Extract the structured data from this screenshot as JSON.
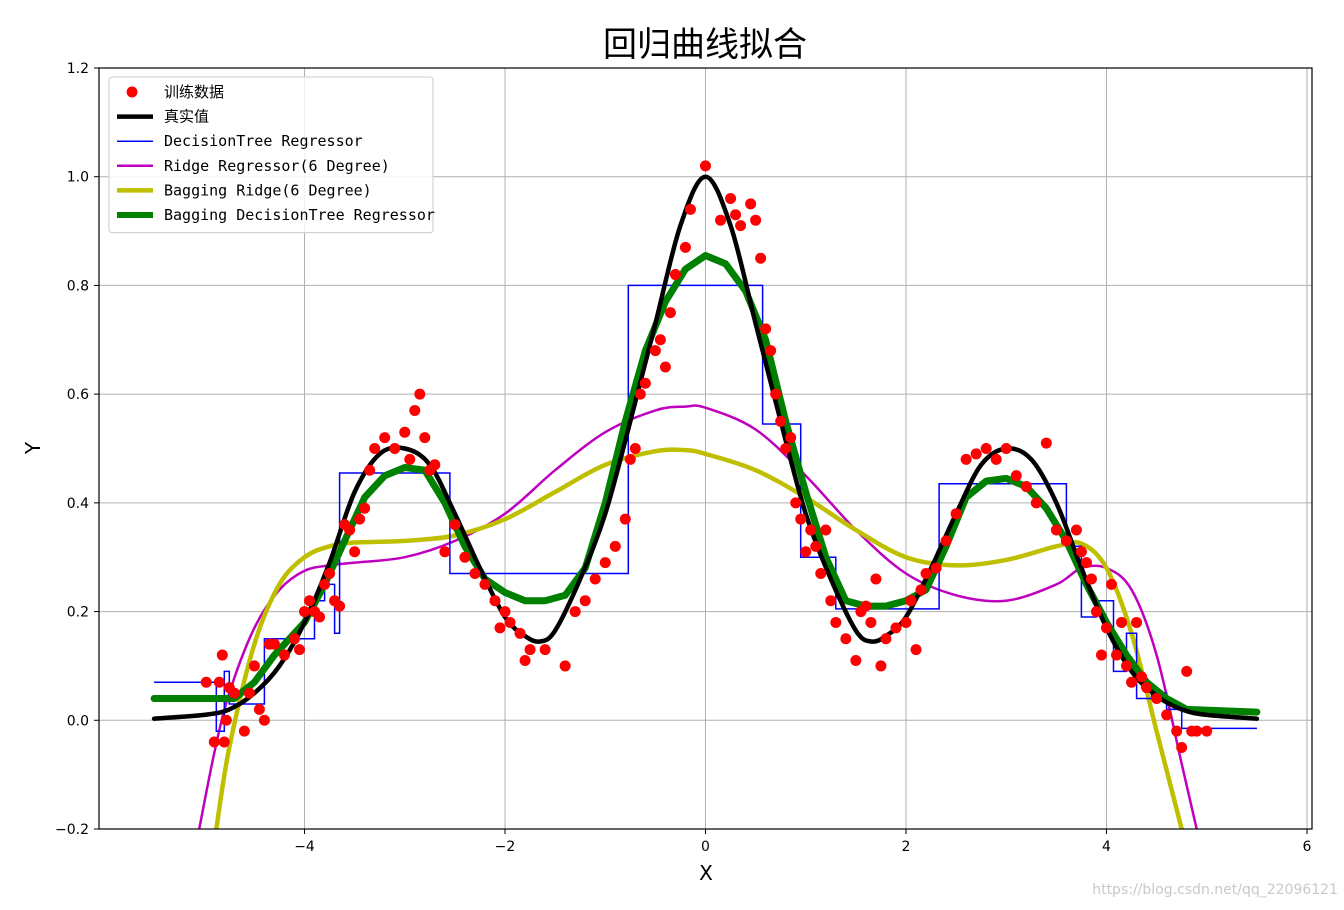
{
  "chart_data": {
    "type": "line",
    "title": "回归曲线拟合",
    "xlabel": "X",
    "ylabel": "Y",
    "xlim": [
      -6.05,
      6.05
    ],
    "ylim": [
      -0.2,
      1.2
    ],
    "xticks": [
      -4,
      -2,
      0,
      2,
      4,
      6
    ],
    "yticks": [
      -0.2,
      0.0,
      0.2,
      0.4,
      0.6,
      0.8,
      1.0,
      1.2
    ],
    "xtick_labels": [
      "−4",
      "−2",
      "0",
      "2",
      "4",
      "6"
    ],
    "ytick_labels": [
      "−0.2",
      "0.0",
      "0.2",
      "0.4",
      "0.6",
      "0.8",
      "1.0",
      "1.2"
    ],
    "grid": true,
    "legend_position": "top-left",
    "series": [
      {
        "name": "训练数据",
        "kind": "scatter",
        "color": "#ff0000",
        "x": [
          -4.98,
          -4.9,
          -4.85,
          -4.82,
          -4.8,
          -4.78,
          -4.75,
          -4.7,
          -4.6,
          -4.55,
          -4.5,
          -4.45,
          -4.4,
          -4.35,
          -4.3,
          -4.2,
          -4.1,
          -4.05,
          -4.0,
          -3.95,
          -3.9,
          -3.85,
          -3.8,
          -3.75,
          -3.7,
          -3.65,
          -3.6,
          -3.55,
          -3.5,
          -3.45,
          -3.4,
          -3.35,
          -3.3,
          -3.2,
          -3.1,
          -3.0,
          -2.95,
          -2.9,
          -2.85,
          -2.8,
          -2.75,
          -2.7,
          -2.6,
          -2.5,
          -2.4,
          -2.3,
          -2.2,
          -2.1,
          -2.05,
          -2.0,
          -1.95,
          -1.85,
          -1.8,
          -1.75,
          -1.6,
          -1.4,
          -1.3,
          -1.2,
          -1.1,
          -1.0,
          -0.9,
          -0.8,
          -0.75,
          -0.7,
          -0.65,
          -0.6,
          -0.5,
          -0.45,
          -0.4,
          -0.35,
          -0.3,
          -0.2,
          -0.15,
          0.0,
          0.15,
          0.25,
          0.3,
          0.35,
          0.45,
          0.5,
          0.55,
          0.6,
          0.65,
          0.7,
          0.75,
          0.8,
          0.85,
          0.9,
          0.95,
          1.0,
          1.05,
          1.1,
          1.15,
          1.2,
          1.25,
          1.3,
          1.4,
          1.5,
          1.55,
          1.6,
          1.65,
          1.7,
          1.75,
          1.8,
          1.9,
          2.0,
          2.05,
          2.1,
          2.15,
          2.2,
          2.3,
          2.4,
          2.5,
          2.6,
          2.7,
          2.8,
          2.9,
          3.0,
          3.1,
          3.2,
          3.3,
          3.4,
          3.5,
          3.6,
          3.7,
          3.75,
          3.8,
          3.85,
          3.9,
          3.95,
          4.0,
          4.05,
          4.1,
          4.15,
          4.2,
          4.25,
          4.3,
          4.35,
          4.4,
          4.5,
          4.6,
          4.7,
          4.75,
          4.8,
          4.85,
          4.9,
          5.0
        ],
        "y": [
          0.07,
          -0.04,
          0.07,
          0.12,
          -0.04,
          0.0,
          0.06,
          0.05,
          -0.02,
          0.05,
          0.1,
          0.02,
          0.0,
          0.14,
          0.14,
          0.12,
          0.15,
          0.13,
          0.2,
          0.22,
          0.2,
          0.19,
          0.25,
          0.27,
          0.22,
          0.21,
          0.36,
          0.35,
          0.31,
          0.37,
          0.39,
          0.46,
          0.5,
          0.52,
          0.5,
          0.53,
          0.48,
          0.57,
          0.6,
          0.52,
          0.46,
          0.47,
          0.31,
          0.36,
          0.3,
          0.27,
          0.25,
          0.22,
          0.17,
          0.2,
          0.18,
          0.16,
          0.11,
          0.13,
          0.13,
          0.1,
          0.2,
          0.22,
          0.26,
          0.29,
          0.32,
          0.37,
          0.48,
          0.5,
          0.6,
          0.62,
          0.68,
          0.7,
          0.65,
          0.75,
          0.82,
          0.87,
          0.94,
          1.02,
          0.92,
          0.96,
          0.93,
          0.91,
          0.95,
          0.92,
          0.85,
          0.72,
          0.68,
          0.6,
          0.55,
          0.5,
          0.52,
          0.4,
          0.37,
          0.31,
          0.35,
          0.32,
          0.27,
          0.35,
          0.22,
          0.18,
          0.15,
          0.11,
          0.2,
          0.21,
          0.18,
          0.26,
          0.1,
          0.15,
          0.17,
          0.18,
          0.22,
          0.13,
          0.24,
          0.27,
          0.28,
          0.33,
          0.38,
          0.48,
          0.49,
          0.5,
          0.48,
          0.5,
          0.45,
          0.43,
          0.4,
          0.51,
          0.35,
          0.33,
          0.35,
          0.31,
          0.29,
          0.26,
          0.2,
          0.12,
          0.17,
          0.25,
          0.12,
          0.18,
          0.1,
          0.07,
          0.18,
          0.08,
          0.06,
          0.04,
          0.01,
          -0.02,
          -0.05,
          0.09,
          -0.02,
          -0.02,
          -0.02
        ]
      },
      {
        "name": "真实值",
        "kind": "line",
        "color": "#000000",
        "stroke_width": 4.5,
        "x": [
          -5.5,
          -5.0,
          -4.75,
          -4.5,
          -4.25,
          -4.0,
          -3.75,
          -3.5,
          -3.25,
          -3.0,
          -2.75,
          -2.5,
          -2.25,
          -2.0,
          -1.8,
          -1.65,
          -1.5,
          -1.25,
          -1.0,
          -0.75,
          -0.5,
          -0.25,
          0.0,
          0.25,
          0.5,
          0.75,
          1.0,
          1.25,
          1.5,
          1.65,
          1.8,
          2.0,
          2.25,
          2.5,
          2.75,
          3.0,
          3.25,
          3.5,
          3.75,
          4.0,
          4.25,
          4.5,
          4.75,
          5.0,
          5.5
        ],
        "y": [
          0.003,
          0.01,
          0.02,
          0.05,
          0.1,
          0.18,
          0.29,
          0.42,
          0.49,
          0.5,
          0.47,
          0.38,
          0.28,
          0.19,
          0.155,
          0.145,
          0.165,
          0.26,
          0.38,
          0.55,
          0.73,
          0.91,
          1.0,
          0.91,
          0.73,
          0.55,
          0.38,
          0.26,
          0.165,
          0.145,
          0.155,
          0.19,
          0.28,
          0.38,
          0.47,
          0.5,
          0.48,
          0.4,
          0.28,
          0.17,
          0.09,
          0.045,
          0.02,
          0.01,
          0.003
        ]
      },
      {
        "name": "DecisionTree Regressor",
        "kind": "step",
        "color": "#0000ff",
        "stroke_width": 1.5,
        "x": [
          -5.5,
          -4.88,
          -4.88,
          -4.8,
          -4.8,
          -4.75,
          -4.75,
          -4.4,
          -4.4,
          -3.9,
          -3.9,
          -3.8,
          -3.8,
          -3.7,
          -3.7,
          -3.65,
          -3.65,
          -2.55,
          -2.55,
          -0.77,
          -0.77,
          0.57,
          0.57,
          0.95,
          0.95,
          1.3,
          1.3,
          2.33,
          2.33,
          3.6,
          3.6,
          3.75,
          3.75,
          3.9,
          3.9,
          4.07,
          4.07,
          4.2,
          4.2,
          4.3,
          4.3,
          4.45,
          4.45,
          4.6,
          4.6,
          4.75,
          4.75,
          5.5
        ],
        "y": [
          0.07,
          0.07,
          -0.02,
          -0.02,
          0.09,
          0.09,
          0.03,
          0.03,
          0.15,
          0.15,
          0.22,
          0.22,
          0.25,
          0.25,
          0.16,
          0.16,
          0.455,
          0.455,
          0.27,
          0.27,
          0.8,
          0.8,
          0.545,
          0.545,
          0.3,
          0.3,
          0.205,
          0.205,
          0.435,
          0.435,
          0.32,
          0.32,
          0.19,
          0.19,
          0.22,
          0.22,
          0.09,
          0.09,
          0.16,
          0.16,
          0.04,
          0.04,
          0.05,
          0.05,
          0.02,
          0.02,
          -0.015,
          -0.015
        ]
      },
      {
        "name": "Ridge Regressor(6 Degree)",
        "kind": "line",
        "color": "#bf00bf",
        "stroke_width": 2.5,
        "x": [
          -5.05,
          -4.9,
          -4.75,
          -4.5,
          -4.25,
          -4.0,
          -3.75,
          -3.5,
          -3.0,
          -2.5,
          -2.0,
          -1.5,
          -1.0,
          -0.5,
          -0.2,
          0.0,
          0.5,
          1.0,
          1.5,
          2.0,
          2.5,
          3.0,
          3.5,
          3.75,
          4.0,
          4.25,
          4.5,
          4.75,
          4.9
        ],
        "y": [
          -0.2,
          -0.06,
          0.05,
          0.17,
          0.24,
          0.275,
          0.285,
          0.29,
          0.3,
          0.33,
          0.38,
          0.46,
          0.53,
          0.57,
          0.577,
          0.575,
          0.535,
          0.45,
          0.35,
          0.27,
          0.23,
          0.22,
          0.25,
          0.28,
          0.28,
          0.24,
          0.12,
          -0.08,
          -0.2
        ]
      },
      {
        "name": "Bagging Ridge(6 Degree)",
        "kind": "line",
        "color": "#bfbf00",
        "stroke_width": 4.5,
        "x": [
          -4.88,
          -4.75,
          -4.5,
          -4.25,
          -4.0,
          -3.75,
          -3.5,
          -3.0,
          -2.5,
          -2.0,
          -1.5,
          -1.0,
          -0.5,
          -0.2,
          0.0,
          0.5,
          1.0,
          1.5,
          2.0,
          2.5,
          3.0,
          3.5,
          3.75,
          4.0,
          4.25,
          4.5,
          4.75
        ],
        "y": [
          -0.2,
          -0.05,
          0.14,
          0.25,
          0.3,
          0.32,
          0.327,
          0.33,
          0.34,
          0.37,
          0.42,
          0.47,
          0.495,
          0.497,
          0.49,
          0.46,
          0.41,
          0.35,
          0.3,
          0.285,
          0.295,
          0.32,
          0.325,
          0.28,
          0.16,
          -0.02,
          -0.2
        ]
      },
      {
        "name": "Bagging DecisionTree Regressor",
        "kind": "line",
        "color": "#008000",
        "stroke_width": 7,
        "x": [
          -5.5,
          -4.9,
          -4.7,
          -4.5,
          -4.3,
          -4.0,
          -3.8,
          -3.6,
          -3.4,
          -3.2,
          -3.0,
          -2.8,
          -2.6,
          -2.4,
          -2.2,
          -2.0,
          -1.8,
          -1.6,
          -1.4,
          -1.2,
          -1.0,
          -0.8,
          -0.6,
          -0.4,
          -0.2,
          0.0,
          0.2,
          0.4,
          0.6,
          0.8,
          1.0,
          1.2,
          1.4,
          1.6,
          1.8,
          2.0,
          2.2,
          2.4,
          2.6,
          2.8,
          3.0,
          3.2,
          3.4,
          3.6,
          3.8,
          4.0,
          4.2,
          4.4,
          4.6,
          4.8,
          5.5
        ],
        "y": [
          0.04,
          0.04,
          0.04,
          0.07,
          0.12,
          0.18,
          0.25,
          0.33,
          0.41,
          0.45,
          0.465,
          0.46,
          0.4,
          0.32,
          0.26,
          0.235,
          0.22,
          0.22,
          0.23,
          0.28,
          0.4,
          0.55,
          0.68,
          0.77,
          0.83,
          0.855,
          0.84,
          0.79,
          0.7,
          0.55,
          0.42,
          0.3,
          0.22,
          0.21,
          0.21,
          0.22,
          0.24,
          0.32,
          0.41,
          0.44,
          0.445,
          0.43,
          0.39,
          0.33,
          0.25,
          0.18,
          0.12,
          0.07,
          0.04,
          0.02,
          0.015
        ]
      }
    ]
  },
  "watermark": "https://blog.csdn.net/qq_22096121"
}
